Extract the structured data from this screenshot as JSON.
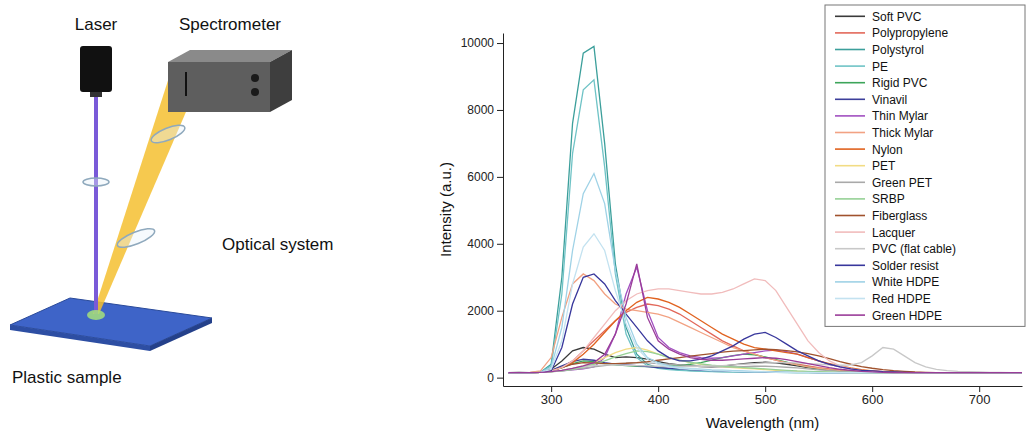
{
  "diagram": {
    "laser": "Laser",
    "spectrometer": "Spectrometer",
    "optical_system": "Optical system",
    "sample": "Plastic sample"
  },
  "chart_data": {
    "type": "line",
    "x_label": "Wavelength (nm)",
    "y_label": "Intensity (a.u.)",
    "xlim": [
      255,
      740
    ],
    "ylim": [
      -250,
      10300
    ],
    "xticks": [
      300,
      400,
      500,
      600,
      700
    ],
    "yticks": [
      0,
      2000,
      4000,
      6000,
      8000,
      10000
    ],
    "grid": false,
    "legend": "top-right",
    "x": [
      260,
      270,
      280,
      290,
      300,
      310,
      320,
      330,
      340,
      350,
      360,
      370,
      380,
      390,
      400,
      410,
      420,
      430,
      440,
      450,
      460,
      470,
      480,
      490,
      500,
      510,
      520,
      530,
      540,
      550,
      560,
      570,
      580,
      590,
      600,
      610,
      620,
      630,
      640,
      650,
      660,
      670,
      680,
      690,
      700,
      710,
      720,
      730,
      740
    ],
    "series": [
      {
        "name": "Soft PVC",
        "color": "#3a3a3a",
        "values": [
          150,
          160,
          150,
          170,
          250,
          500,
          800,
          900,
          850,
          700,
          600,
          620,
          600,
          550,
          480,
          420,
          380,
          350,
          330,
          320,
          340,
          380,
          420,
          450,
          460,
          440,
          400,
          350,
          300,
          260,
          230,
          210,
          190,
          180,
          170,
          160,
          160,
          150,
          150,
          150,
          150,
          150,
          150,
          150,
          150,
          150,
          150,
          150,
          150
        ]
      },
      {
        "name": "Polypropylene",
        "color": "#e2685a",
        "values": [
          150,
          150,
          150,
          160,
          200,
          300,
          500,
          800,
          1100,
          1400,
          1700,
          1950,
          2100,
          2200,
          2150,
          2050,
          1900,
          1700,
          1500,
          1300,
          1100,
          950,
          800,
          700,
          600,
          520,
          450,
          400,
          350,
          300,
          260,
          230,
          200,
          180,
          170,
          160,
          160,
          150,
          150,
          150,
          150,
          150,
          150,
          150,
          150,
          150,
          150,
          150,
          150
        ]
      },
      {
        "name": "Polystyrol",
        "color": "#3c9f9b",
        "values": [
          150,
          150,
          150,
          160,
          400,
          3000,
          7600,
          9700,
          9900,
          7000,
          3400,
          1500,
          700,
          400,
          300,
          260,
          230,
          210,
          200,
          190,
          180,
          170,
          170,
          160,
          160,
          160,
          160,
          150,
          150,
          150,
          150,
          150,
          150,
          150,
          150,
          150,
          150,
          150,
          150,
          150,
          150,
          150,
          150,
          150,
          150,
          150,
          150,
          150,
          150
        ]
      },
      {
        "name": "PE",
        "color": "#6fc3c6",
        "values": [
          150,
          150,
          150,
          160,
          350,
          2500,
          6700,
          8600,
          8900,
          6300,
          3100,
          1300,
          600,
          350,
          280,
          240,
          220,
          200,
          190,
          180,
          170,
          170,
          160,
          160,
          160,
          160,
          150,
          150,
          150,
          150,
          150,
          150,
          150,
          150,
          150,
          150,
          150,
          150,
          150,
          150,
          150,
          150,
          150,
          150,
          150,
          150,
          150,
          150,
          150
        ]
      },
      {
        "name": "Rigid PVC",
        "color": "#3da55a",
        "values": [
          150,
          150,
          150,
          160,
          200,
          300,
          420,
          500,
          480,
          420,
          380,
          360,
          340,
          330,
          330,
          340,
          360,
          400,
          450,
          520,
          600,
          660,
          700,
          680,
          620,
          540,
          460,
          380,
          320,
          270,
          230,
          200,
          180,
          170,
          160,
          150,
          150,
          150,
          150,
          150,
          150,
          150,
          150,
          150,
          150,
          150,
          150,
          150,
          150
        ]
      },
      {
        "name": "Vinavil",
        "color": "#3c3f9a",
        "values": [
          150,
          150,
          150,
          160,
          220,
          350,
          480,
          550,
          520,
          450,
          400,
          380,
          360,
          330,
          300,
          280,
          260,
          240,
          220,
          210,
          200,
          190,
          180,
          180,
          170,
          170,
          160,
          160,
          160,
          150,
          150,
          150,
          150,
          150,
          150,
          150,
          150,
          150,
          150,
          150,
          150,
          150,
          150,
          150,
          150,
          150,
          150,
          150,
          150
        ]
      },
      {
        "name": "Thin Mylar",
        "color": "#a14fc0",
        "values": [
          150,
          150,
          150,
          160,
          180,
          200,
          230,
          260,
          320,
          600,
          1300,
          2500,
          3300,
          2000,
          1200,
          900,
          750,
          650,
          600,
          580,
          600,
          650,
          700,
          750,
          800,
          820,
          780,
          700,
          600,
          500,
          400,
          320,
          260,
          220,
          200,
          180,
          170,
          160,
          150,
          150,
          150,
          150,
          150,
          150,
          150,
          150,
          150,
          150,
          150
        ]
      },
      {
        "name": "Thick Mylar",
        "color": "#f2a283",
        "values": [
          150,
          150,
          160,
          200,
          600,
          1800,
          2800,
          3100,
          2900,
          2500,
          2200,
          2050,
          2000,
          1950,
          1900,
          1800,
          1650,
          1500,
          1350,
          1200,
          1050,
          900,
          800,
          700,
          600,
          520,
          450,
          380,
          320,
          280,
          240,
          210,
          190,
          170,
          160,
          150,
          150,
          150,
          150,
          150,
          150,
          150,
          150,
          150,
          150,
          150,
          150,
          150,
          150
        ]
      },
      {
        "name": "Nylon",
        "color": "#e0621f",
        "values": [
          150,
          150,
          150,
          160,
          200,
          300,
          450,
          700,
          1000,
          1350,
          1700,
          2000,
          2250,
          2400,
          2350,
          2250,
          2100,
          1900,
          1700,
          1500,
          1300,
          1150,
          1000,
          900,
          850,
          800,
          750,
          700,
          600,
          500,
          420,
          350,
          290,
          240,
          200,
          180,
          170,
          160,
          150,
          150,
          150,
          150,
          150,
          150,
          150,
          150,
          150,
          150,
          150
        ]
      },
      {
        "name": "PET",
        "color": "#f2dc84",
        "values": [
          150,
          150,
          150,
          160,
          180,
          220,
          280,
          350,
          450,
          600,
          750,
          850,
          900,
          820,
          700,
          600,
          520,
          450,
          400,
          350,
          320,
          300,
          280,
          260,
          240,
          220,
          200,
          190,
          180,
          170,
          160,
          160,
          150,
          150,
          150,
          150,
          150,
          150,
          150,
          150,
          150,
          150,
          150,
          150,
          150,
          150,
          150,
          150,
          150
        ]
      },
      {
        "name": "Green PET",
        "color": "#a9a9a9",
        "values": [
          150,
          150,
          150,
          160,
          180,
          200,
          240,
          280,
          320,
          360,
          400,
          430,
          450,
          440,
          420,
          400,
          380,
          360,
          340,
          330,
          320,
          320,
          330,
          340,
          340,
          330,
          310,
          290,
          260,
          230,
          210,
          190,
          180,
          170,
          160,
          150,
          150,
          150,
          150,
          150,
          150,
          150,
          150,
          150,
          150,
          150,
          150,
          150,
          150
        ]
      },
      {
        "name": "SRBP",
        "color": "#96d196",
        "values": [
          150,
          150,
          150,
          160,
          170,
          200,
          250,
          320,
          400,
          500,
          620,
          720,
          800,
          780,
          700,
          600,
          520,
          460,
          410,
          370,
          340,
          320,
          300,
          280,
          260,
          240,
          220,
          200,
          190,
          180,
          170,
          160,
          160,
          150,
          150,
          150,
          150,
          150,
          150,
          150,
          150,
          150,
          150,
          150,
          150,
          150,
          150,
          150,
          150
        ]
      },
      {
        "name": "Fiberglass",
        "color": "#a0522d",
        "values": [
          150,
          150,
          150,
          160,
          200,
          300,
          400,
          450,
          440,
          420,
          420,
          430,
          450,
          480,
          520,
          560,
          600,
          640,
          680,
          720,
          760,
          790,
          810,
          830,
          850,
          840,
          810,
          770,
          720,
          650,
          570,
          480,
          400,
          330,
          280,
          240,
          210,
          190,
          170,
          160,
          150,
          150,
          150,
          150,
          150,
          150,
          150,
          150,
          150
        ]
      },
      {
        "name": "Lacquer",
        "color": "#f1bcbc",
        "values": [
          150,
          150,
          150,
          160,
          200,
          300,
          500,
          800,
          1200,
          1600,
          2000,
          2300,
          2500,
          2600,
          2650,
          2650,
          2600,
          2550,
          2500,
          2500,
          2550,
          2650,
          2800,
          2950,
          2900,
          2600,
          2100,
          1600,
          1100,
          750,
          500,
          350,
          270,
          220,
          190,
          170,
          160,
          150,
          150,
          150,
          150,
          150,
          150,
          150,
          150,
          150,
          150,
          150,
          150
        ]
      },
      {
        "name": "PVC (flat cable)",
        "color": "#c8c8c8",
        "values": [
          150,
          150,
          150,
          160,
          180,
          220,
          280,
          330,
          360,
          380,
          380,
          370,
          360,
          350,
          340,
          330,
          330,
          330,
          340,
          350,
          360,
          380,
          400,
          420,
          440,
          450,
          450,
          440,
          420,
          400,
          380,
          370,
          380,
          450,
          650,
          900,
          850,
          650,
          450,
          320,
          250,
          210,
          190,
          180,
          170,
          160,
          160,
          150,
          150
        ]
      },
      {
        "name": "Solder resist",
        "color": "#38379c",
        "values": [
          150,
          150,
          150,
          160,
          200,
          900,
          2200,
          3000,
          3100,
          2800,
          2300,
          1900,
          1500,
          1100,
          800,
          600,
          500,
          500,
          550,
          650,
          800,
          950,
          1150,
          1300,
          1350,
          1200,
          1000,
          800,
          650,
          500,
          400,
          320,
          260,
          220,
          200,
          180,
          170,
          160,
          150,
          150,
          150,
          150,
          150,
          150,
          150,
          150,
          150,
          150,
          150
        ]
      },
      {
        "name": "White HDPE",
        "color": "#9fd2e6",
        "values": [
          150,
          150,
          150,
          160,
          300,
          1500,
          3800,
          5500,
          6100,
          5200,
          3200,
          1800,
          1000,
          600,
          450,
          350,
          300,
          270,
          250,
          230,
          220,
          210,
          200,
          190,
          180,
          170,
          170,
          160,
          160,
          150,
          150,
          150,
          150,
          150,
          150,
          150,
          150,
          150,
          150,
          150,
          150,
          150,
          150,
          150,
          150,
          150,
          150,
          150,
          150
        ]
      },
      {
        "name": "Red HDPE",
        "color": "#c3e2f0",
        "values": [
          150,
          150,
          150,
          160,
          250,
          1100,
          2800,
          3900,
          4300,
          3800,
          2600,
          1600,
          900,
          550,
          400,
          320,
          280,
          250,
          230,
          210,
          200,
          190,
          180,
          170,
          170,
          160,
          160,
          150,
          150,
          150,
          150,
          150,
          150,
          150,
          150,
          150,
          150,
          150,
          150,
          150,
          150,
          150,
          150,
          150,
          150,
          150,
          150,
          150,
          150
        ]
      },
      {
        "name": "Green HDPE",
        "color": "#9a3d99",
        "values": [
          150,
          150,
          150,
          160,
          180,
          220,
          280,
          350,
          450,
          700,
          1300,
          2200,
          3400,
          1800,
          1100,
          850,
          700,
          600,
          550,
          520,
          520,
          540,
          560,
          580,
          600,
          580,
          540,
          480,
          420,
          360,
          300,
          250,
          220,
          190,
          170,
          160,
          150,
          150,
          150,
          150,
          150,
          150,
          150,
          150,
          150,
          150,
          150,
          150,
          150
        ]
      }
    ]
  }
}
